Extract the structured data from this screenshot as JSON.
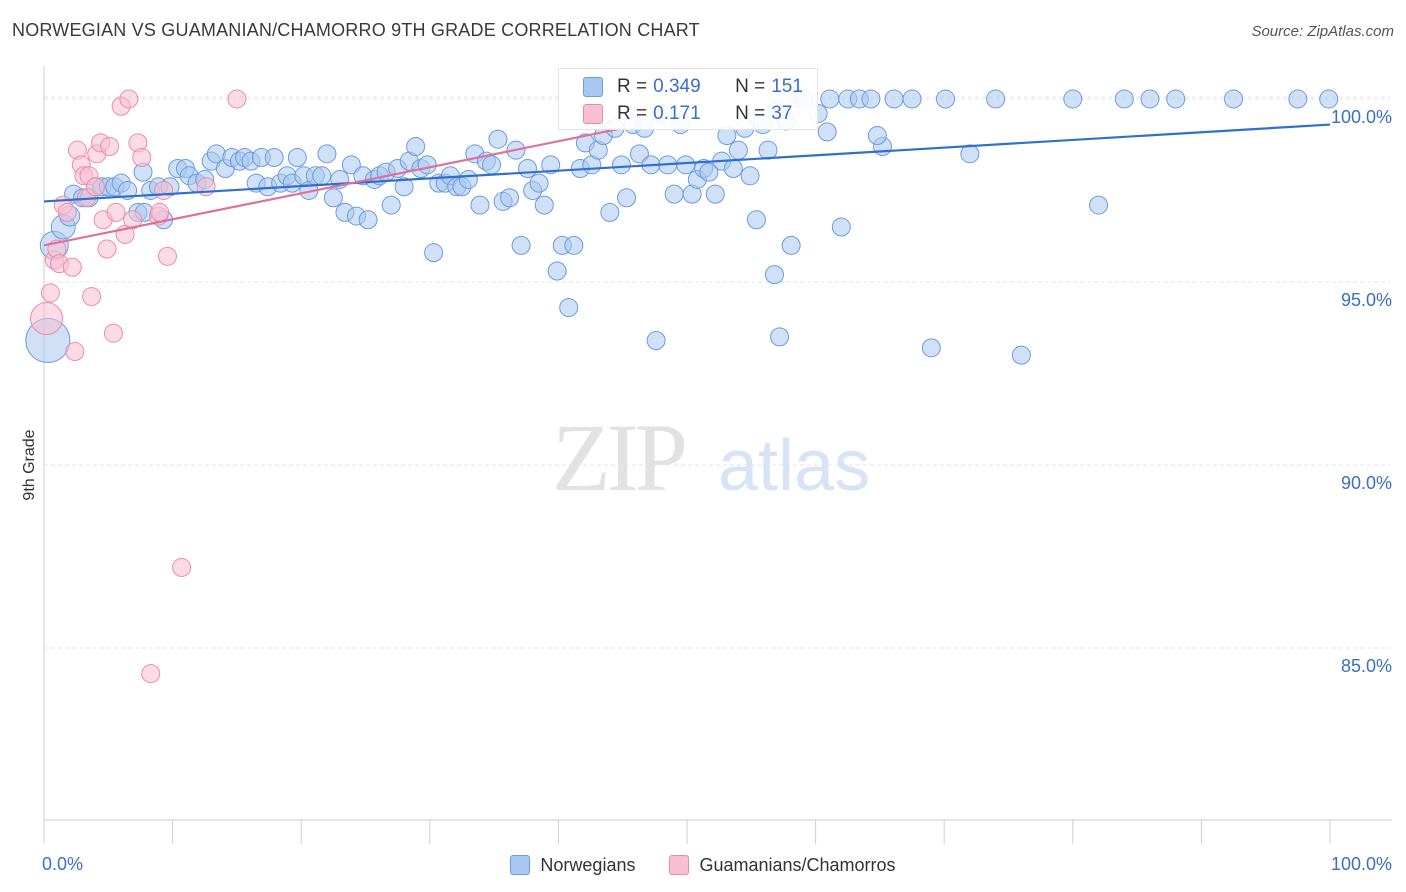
{
  "title": "NORWEGIAN VS GUAMANIAN/CHAMORRO 9TH GRADE CORRELATION CHART",
  "source": "Source: ZipAtlas.com",
  "watermark": {
    "zip": "ZIP",
    "atlas": "atlas"
  },
  "stats": [
    {
      "r_label": "R = ",
      "r_value": "0.349",
      "n_label": "N = ",
      "n_value": "151",
      "color": "#a9c8f1",
      "border": "#6b9be0"
    },
    {
      "r_label": "R = ",
      "r_value": "0.171",
      "n_label": "N = ",
      "n_value": "37",
      "color": "#f8c0d2",
      "border": "#ec8aab"
    }
  ],
  "legend": [
    {
      "label": "Norwegians",
      "color": "#a9c8f1",
      "border": "#6b9be0"
    },
    {
      "label": "Guamanians/Chamorros",
      "color": "#f8c0d2",
      "border": "#ec8aab"
    }
  ],
  "chart_data": {
    "type": "scatter",
    "title": "NORWEGIAN VS GUAMANIAN/CHAMORRO 9TH GRADE CORRELATION CHART",
    "xlabel": "",
    "ylabel": "9th Grade",
    "xlim": [
      0,
      100
    ],
    "ylim": [
      80.3,
      100.9
    ],
    "x_tick_labels": [
      "0.0%",
      "100.0%"
    ],
    "y_ticks": [
      85,
      90,
      95,
      100
    ],
    "y_tick_labels": [
      "85.0%",
      "90.0%",
      "95.0%",
      "100.0%"
    ],
    "grid": true,
    "legend_position": "bottom",
    "series": [
      {
        "name": "Norwegians",
        "color": "#6b9be0",
        "fill": "#a9c8f1",
        "trend": {
          "x": [
            0,
            100
          ],
          "y": [
            97.2,
            99.3
          ],
          "color": "#2f6fd0"
        },
        "points": [
          [
            0.3,
            93.4,
            22
          ],
          [
            0.8,
            96.0,
            14
          ],
          [
            1.5,
            96.5,
            12
          ],
          [
            2.0,
            96.8,
            10
          ],
          [
            2.3,
            97.4,
            9
          ],
          [
            3.0,
            97.3,
            9
          ],
          [
            3.5,
            97.3,
            9
          ],
          [
            4.0,
            97.6,
            9
          ],
          [
            4.5,
            97.6,
            9
          ],
          [
            5.0,
            97.6,
            9
          ],
          [
            5.5,
            97.6,
            9
          ],
          [
            6.0,
            97.7,
            9
          ],
          [
            6.5,
            97.5,
            9
          ],
          [
            7.3,
            96.9,
            9
          ],
          [
            7.7,
            98.0,
            9
          ],
          [
            7.8,
            96.9,
            9
          ],
          [
            8.3,
            97.5,
            9
          ],
          [
            8.9,
            97.6,
            9
          ],
          [
            9.3,
            96.7,
            9
          ],
          [
            9.8,
            97.6,
            9
          ],
          [
            10.4,
            98.1,
            9
          ],
          [
            11.0,
            98.1,
            9
          ],
          [
            11.3,
            97.9,
            9
          ],
          [
            11.9,
            97.7,
            9
          ],
          [
            12.5,
            97.8,
            9
          ],
          [
            13.0,
            98.3,
            9
          ],
          [
            13.4,
            98.5,
            9
          ],
          [
            14.1,
            98.1,
            9
          ],
          [
            14.6,
            98.4,
            9
          ],
          [
            15.2,
            98.3,
            9
          ],
          [
            15.6,
            98.4,
            9
          ],
          [
            16.1,
            98.3,
            9
          ],
          [
            16.5,
            97.7,
            9
          ],
          [
            16.9,
            98.4,
            9
          ],
          [
            17.4,
            97.6,
            9
          ],
          [
            17.9,
            98.4,
            9
          ],
          [
            18.4,
            97.7,
            9
          ],
          [
            18.9,
            97.9,
            9
          ],
          [
            19.3,
            97.7,
            9
          ],
          [
            19.7,
            98.4,
            9
          ],
          [
            20.2,
            97.9,
            9
          ],
          [
            20.6,
            97.5,
            9
          ],
          [
            21.1,
            97.9,
            9
          ],
          [
            21.6,
            97.9,
            9
          ],
          [
            22.0,
            98.5,
            9
          ],
          [
            22.5,
            97.3,
            9
          ],
          [
            23.0,
            97.8,
            9
          ],
          [
            23.4,
            96.9,
            9
          ],
          [
            23.9,
            98.2,
            9
          ],
          [
            24.3,
            96.8,
            9
          ],
          [
            24.8,
            97.9,
            9
          ],
          [
            25.2,
            96.7,
            9
          ],
          [
            25.7,
            97.8,
            9
          ],
          [
            26.1,
            97.9,
            9
          ],
          [
            26.6,
            98.0,
            9
          ],
          [
            27.0,
            97.1,
            9
          ],
          [
            27.5,
            98.1,
            9
          ],
          [
            28.0,
            97.6,
            9
          ],
          [
            28.4,
            98.3,
            9
          ],
          [
            28.9,
            98.7,
            9
          ],
          [
            29.3,
            98.1,
            9
          ],
          [
            29.8,
            98.2,
            9
          ],
          [
            30.3,
            95.8,
            9
          ],
          [
            30.7,
            97.7,
            9
          ],
          [
            31.2,
            97.7,
            9
          ],
          [
            31.6,
            97.9,
            9
          ],
          [
            32.1,
            97.6,
            9
          ],
          [
            32.5,
            97.6,
            9
          ],
          [
            33.0,
            97.8,
            9
          ],
          [
            33.5,
            98.5,
            9
          ],
          [
            33.9,
            97.1,
            9
          ],
          [
            34.4,
            98.3,
            9
          ],
          [
            34.8,
            98.2,
            9
          ],
          [
            35.3,
            98.9,
            9
          ],
          [
            35.7,
            97.2,
            9
          ],
          [
            36.2,
            97.3,
            9
          ],
          [
            36.7,
            98.6,
            9
          ],
          [
            37.1,
            96.0,
            9
          ],
          [
            37.6,
            98.1,
            9
          ],
          [
            38.0,
            97.5,
            9
          ],
          [
            38.5,
            97.7,
            9
          ],
          [
            38.9,
            97.1,
            9
          ],
          [
            39.4,
            98.2,
            9
          ],
          [
            39.9,
            95.3,
            9
          ],
          [
            40.3,
            96.0,
            9
          ],
          [
            40.8,
            94.3,
            9
          ],
          [
            41.2,
            96.0,
            9
          ],
          [
            41.7,
            98.1,
            9
          ],
          [
            42.1,
            98.8,
            9
          ],
          [
            42.6,
            98.2,
            9
          ],
          [
            43.1,
            98.6,
            9
          ],
          [
            43.5,
            99.0,
            9
          ],
          [
            44.0,
            96.9,
            9
          ],
          [
            44.4,
            99.2,
            9
          ],
          [
            44.9,
            98.2,
            9
          ],
          [
            45.3,
            97.3,
            9
          ],
          [
            45.8,
            99.3,
            9
          ],
          [
            46.3,
            98.5,
            9
          ],
          [
            46.7,
            99.2,
            9
          ],
          [
            47.2,
            98.2,
            9
          ],
          [
            47.6,
            93.4,
            9
          ],
          [
            48.1,
            99.6,
            9
          ],
          [
            48.5,
            98.2,
            9
          ],
          [
            49.0,
            97.4,
            9
          ],
          [
            49.5,
            99.3,
            9
          ],
          [
            49.9,
            98.2,
            9
          ],
          [
            50.4,
            97.4,
            9
          ],
          [
            50.8,
            97.8,
            9
          ],
          [
            51.3,
            98.1,
            9
          ],
          [
            51.7,
            98.0,
            9
          ],
          [
            52.2,
            97.4,
            9
          ],
          [
            52.7,
            98.3,
            9
          ],
          [
            53.1,
            99.0,
            9
          ],
          [
            53.6,
            98.1,
            9
          ],
          [
            54.0,
            98.6,
            9
          ],
          [
            54.5,
            99.2,
            9
          ],
          [
            54.9,
            97.9,
            9
          ],
          [
            55.4,
            96.7,
            9
          ],
          [
            55.9,
            99.3,
            9
          ],
          [
            56.3,
            98.6,
            9
          ],
          [
            56.8,
            95.2,
            9
          ],
          [
            57.2,
            93.5,
            9
          ],
          [
            57.7,
            99.4,
            9
          ],
          [
            58.1,
            96.0,
            9
          ],
          [
            58.6,
            100.0,
            9
          ],
          [
            59.1,
            100.0,
            9
          ],
          [
            60.2,
            99.6,
            9
          ],
          [
            61.1,
            100.0,
            9
          ],
          [
            62.0,
            96.5,
            9
          ],
          [
            62.5,
            100.0,
            9
          ],
          [
            63.4,
            100.0,
            9
          ],
          [
            64.3,
            100.0,
            9
          ],
          [
            65.2,
            98.7,
            9
          ],
          [
            66.1,
            100.0,
            9
          ],
          [
            67.5,
            100.0,
            9
          ],
          [
            69.0,
            93.2,
            9
          ],
          [
            70.1,
            100.0,
            9
          ],
          [
            72.0,
            98.5,
            9
          ],
          [
            74.0,
            100.0,
            9
          ],
          [
            76.0,
            93.0,
            9
          ],
          [
            80.0,
            100.0,
            9
          ],
          [
            82.0,
            97.1,
            9
          ],
          [
            84.0,
            100.0,
            9
          ],
          [
            86.0,
            100.0,
            9
          ],
          [
            88.0,
            100.0,
            9
          ],
          [
            92.5,
            100.0,
            9
          ],
          [
            97.5,
            100.0,
            9
          ],
          [
            99.9,
            100.0,
            9
          ],
          [
            64.8,
            99.0,
            9
          ],
          [
            57.0,
            99.7,
            9
          ],
          [
            60.9,
            99.1,
            9
          ]
        ]
      },
      {
        "name": "Guamanians/Chamorros",
        "color": "#ec8aab",
        "fill": "#f8c0d2",
        "trend": {
          "x": [
            0,
            45
          ],
          "y": [
            96.0,
            99.2
          ],
          "color": "#e0709a"
        },
        "points": [
          [
            0.2,
            94.0,
            16
          ],
          [
            0.5,
            94.7,
            9
          ],
          [
            0.8,
            95.6,
            9
          ],
          [
            1.0,
            95.9,
            9
          ],
          [
            1.2,
            95.5,
            9
          ],
          [
            1.5,
            97.1,
            9
          ],
          [
            1.8,
            96.9,
            9
          ],
          [
            2.2,
            95.4,
            9
          ],
          [
            2.4,
            93.1,
            9
          ],
          [
            2.6,
            98.6,
            9
          ],
          [
            2.9,
            98.2,
            9
          ],
          [
            3.1,
            97.9,
            9
          ],
          [
            3.3,
            97.3,
            9
          ],
          [
            3.5,
            97.9,
            9
          ],
          [
            3.7,
            94.6,
            9
          ],
          [
            4.0,
            97.6,
            9
          ],
          [
            4.1,
            98.5,
            9
          ],
          [
            4.4,
            98.8,
            9
          ],
          [
            4.6,
            96.7,
            9
          ],
          [
            4.9,
            95.9,
            9
          ],
          [
            5.1,
            98.7,
            9
          ],
          [
            5.4,
            93.6,
            9
          ],
          [
            5.6,
            96.9,
            9
          ],
          [
            6.0,
            99.8,
            9
          ],
          [
            6.3,
            96.3,
            9
          ],
          [
            6.6,
            100.0,
            9
          ],
          [
            6.9,
            96.7,
            9
          ],
          [
            7.3,
            98.8,
            9
          ],
          [
            7.6,
            98.4,
            9
          ],
          [
            8.3,
            84.3,
            9
          ],
          [
            8.9,
            96.8,
            9
          ],
          [
            9.3,
            97.5,
            9
          ],
          [
            9.6,
            95.7,
            9
          ],
          [
            10.7,
            87.2,
            9
          ],
          [
            12.6,
            97.6,
            9
          ],
          [
            15.0,
            100.0,
            9
          ],
          [
            9.0,
            96.9,
            9
          ]
        ]
      }
    ]
  }
}
